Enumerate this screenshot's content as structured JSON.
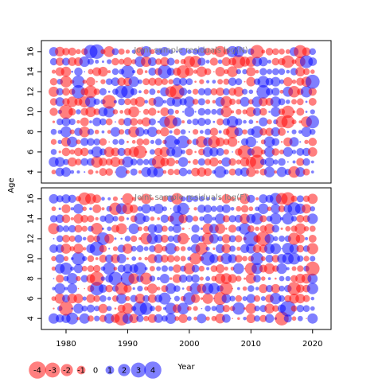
{
  "chart_data": {
    "type": "bubble",
    "x_axis": {
      "label": "Year",
      "range": [
        1976,
        2023
      ],
      "ticks": [
        1980,
        1990,
        2000,
        2010,
        2020
      ]
    },
    "y_axis": {
      "label": "Age",
      "range": [
        2.9,
        17.1
      ],
      "ticks": [
        4,
        6,
        8,
        10,
        12,
        14,
        16
      ]
    },
    "years": [
      1978,
      2020
    ],
    "ages": [
      4,
      16
    ],
    "colors": {
      "positive": "#0000ff",
      "negative": "#ff0000"
    },
    "panels": [
      {
        "title": "Joint sample residuals log(N)",
        "seed": 11
      },
      {
        "title": "Joint sample residuals log(F)",
        "seed": 29
      }
    ],
    "legend": {
      "values": [
        -4,
        -3,
        -2,
        -1,
        0,
        1,
        2,
        3,
        4
      ],
      "labels": [
        "-4",
        "-3",
        "-2",
        "-1",
        "0",
        "1",
        "2",
        "3",
        "4"
      ]
    }
  }
}
